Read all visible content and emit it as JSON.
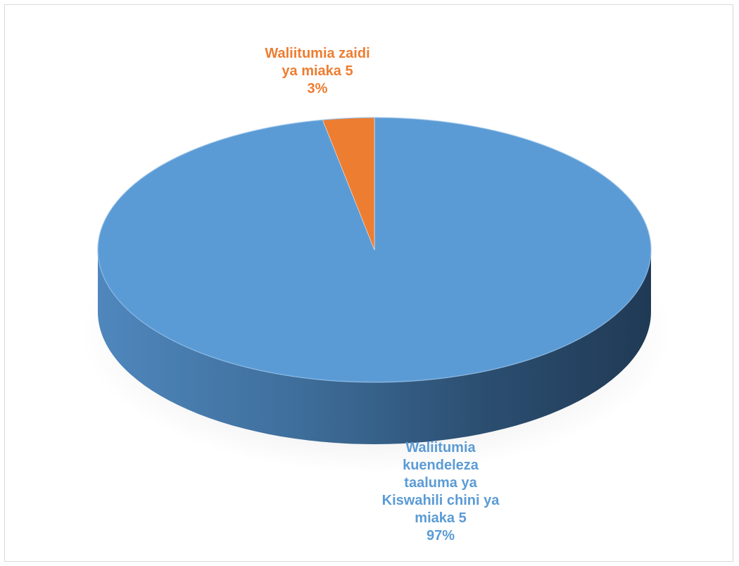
{
  "chart_data": {
    "type": "pie",
    "title": "",
    "style": "3d",
    "slices": [
      {
        "label_lines": [
          "Waliitumia",
          "kuendeleza",
          "taaluma ya",
          "Kiswahili chini ya",
          "miaka 5"
        ],
        "percent_label": "97%",
        "value": 97,
        "color": "#5b9bd5"
      },
      {
        "label_lines": [
          "Waliitumia zaidi",
          "ya miaka 5"
        ],
        "percent_label": "3%",
        "value": 3,
        "color": "#ed7d31"
      }
    ],
    "legend": "none"
  }
}
